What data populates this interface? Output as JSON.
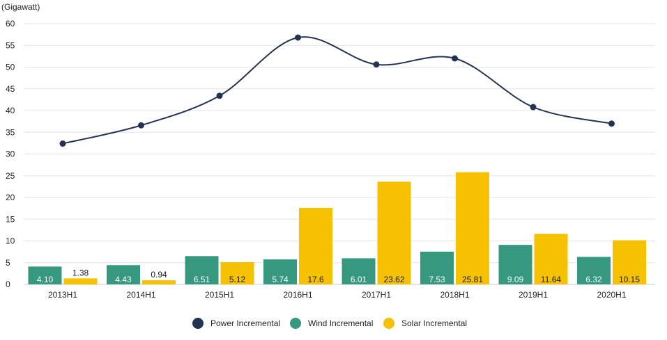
{
  "chart_data": {
    "type": "bar",
    "ylabel": "(Gigawatt)",
    "ylim": [
      0,
      60
    ],
    "yticks": [
      0,
      5,
      10,
      15,
      20,
      25,
      30,
      35,
      40,
      45,
      50,
      55,
      60
    ],
    "grid": true,
    "legend_position": "bottom-center",
    "categories": [
      "2013H1",
      "2014H1",
      "2015H1",
      "2016H1",
      "2017H1",
      "2018H1",
      "2019H1",
      "2020H1"
    ],
    "series": [
      {
        "name": "Power Incremental",
        "kind": "line",
        "color": "#243351",
        "values": [
          32.4,
          36.6,
          43.4,
          56.8,
          50.6,
          52.0,
          40.8,
          37.0
        ]
      },
      {
        "name": "Wind Incremental",
        "kind": "bar",
        "color": "#36987f",
        "values": [
          4.1,
          4.43,
          6.51,
          5.74,
          6.01,
          7.53,
          9.09,
          6.32
        ],
        "labels": [
          "4.10",
          "4.43",
          "6.51",
          "5.74",
          "6.01",
          "7.53",
          "9.09",
          "6.32"
        ]
      },
      {
        "name": "Solar Incremental",
        "kind": "bar",
        "color": "#f5c100",
        "values": [
          1.38,
          0.94,
          5.12,
          17.6,
          23.62,
          25.81,
          11.64,
          10.15
        ],
        "labels": [
          "1.38",
          "0.94",
          "5.12",
          "17.6",
          "23.62",
          "25.81",
          "11.64",
          "10.15"
        ]
      }
    ]
  }
}
